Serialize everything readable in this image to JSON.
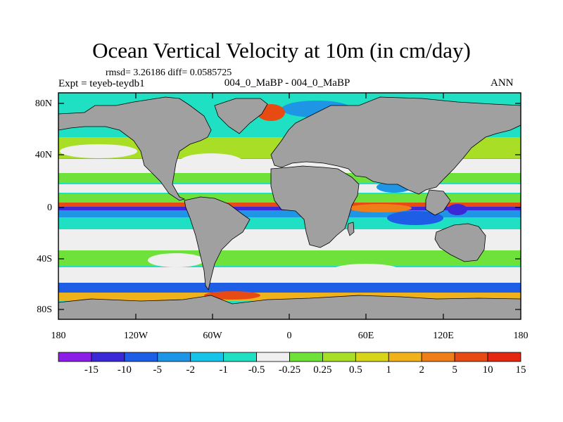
{
  "title": "Ocean Vertical Velocity at 10m (in cm/day)",
  "subtitle_stats": "rmsd= 3.26186  diff= 0.0585725",
  "left_label": "Expt = teyeb-teydb1",
  "center_label": "004_0_MaBP - 004_0_MaBP",
  "right_label": "ANN",
  "lat_ticks": [
    "80N",
    "40N",
    "0",
    "40S",
    "80S"
  ],
  "lon_ticks": [
    "180",
    "120W",
    "60W",
    "0",
    "60E",
    "120E",
    "180"
  ],
  "colorbar": {
    "colors": [
      "#8c1fe6",
      "#3b28d6",
      "#1e5de6",
      "#1f95e6",
      "#17c3e8",
      "#1fe0c2",
      "#efefef",
      "#6ee13a",
      "#a8de25",
      "#d8d41a",
      "#f0b21a",
      "#ef7d18",
      "#e84a14",
      "#e52610"
    ],
    "labels": [
      "-15",
      "-10",
      "-5",
      "-2",
      "-1",
      "-0.5",
      "-0.25",
      "0.25",
      "0.5",
      "1",
      "2",
      "5",
      "10",
      "15"
    ]
  },
  "map_colors": {
    "land": "#a0a0a0",
    "frame": "#000000"
  }
}
